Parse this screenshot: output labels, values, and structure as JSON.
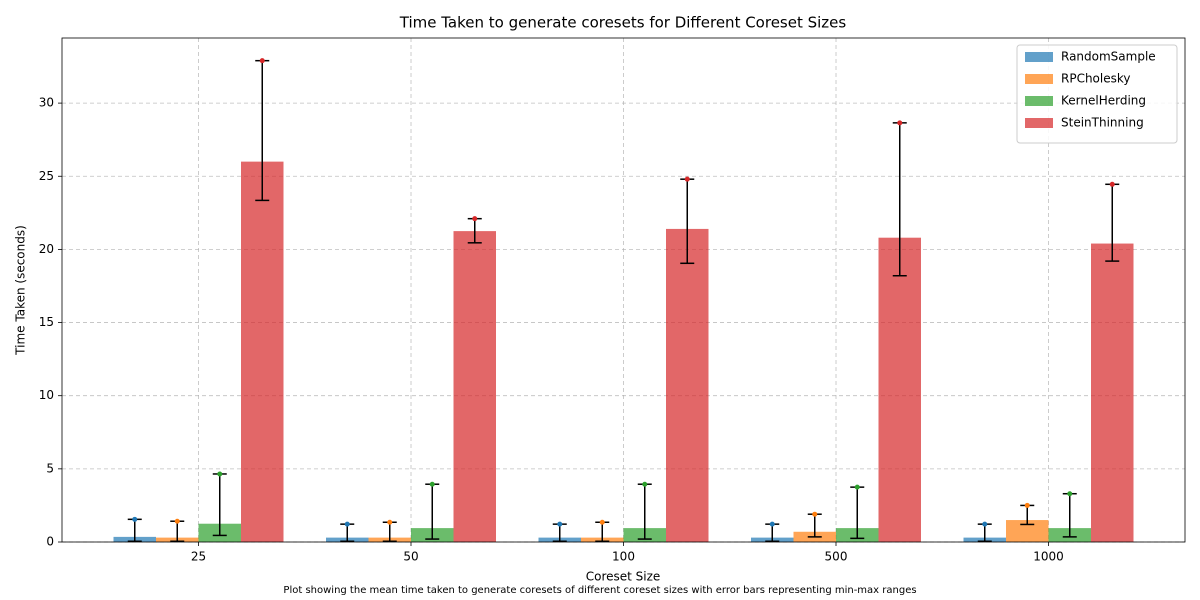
{
  "chart_data": {
    "type": "bar",
    "title": "Time Taken to generate coresets for Different Coreset Sizes",
    "x_label": "Coreset Size",
    "y_label": "Time Taken (seconds)",
    "caption": "Plot showing the mean time taken to generate coresets of different coreset sizes with error bars representing min-max ranges",
    "categories": [
      "25",
      "50",
      "100",
      "500",
      "1000"
    ],
    "series": [
      {
        "name": "RandomSample",
        "color": "#1f77b4",
        "values": [
          0.35,
          0.3,
          0.3,
          0.3,
          0.3
        ],
        "min": [
          0.05,
          0.05,
          0.05,
          0.05,
          0.05
        ],
        "max": [
          1.55,
          1.22,
          1.22,
          1.22,
          1.22
        ]
      },
      {
        "name": "RPCholesky",
        "color": "#ff7f0e",
        "values": [
          0.3,
          0.3,
          0.3,
          0.7,
          1.5
        ],
        "min": [
          0.05,
          0.05,
          0.05,
          0.35,
          1.2
        ],
        "max": [
          1.42,
          1.35,
          1.35,
          1.9,
          2.5
        ]
      },
      {
        "name": "KernelHerding",
        "color": "#2ca02c",
        "values": [
          1.25,
          0.95,
          0.95,
          0.95,
          0.95
        ],
        "min": [
          0.45,
          0.2,
          0.2,
          0.25,
          0.35
        ],
        "max": [
          4.65,
          3.95,
          3.95,
          3.75,
          3.3
        ]
      },
      {
        "name": "SteinThinning",
        "color": "#d62728",
        "values": [
          26.0,
          21.25,
          21.4,
          20.8,
          20.4
        ],
        "min": [
          23.35,
          20.45,
          19.05,
          18.2,
          19.2
        ],
        "max": [
          32.9,
          22.1,
          24.8,
          28.65,
          24.45
        ]
      }
    ],
    "ylim": [
      0,
      34.45
    ],
    "yticks": [
      0,
      5,
      10,
      15,
      20,
      25,
      30
    ],
    "grid": true,
    "legend": "upper-right"
  }
}
